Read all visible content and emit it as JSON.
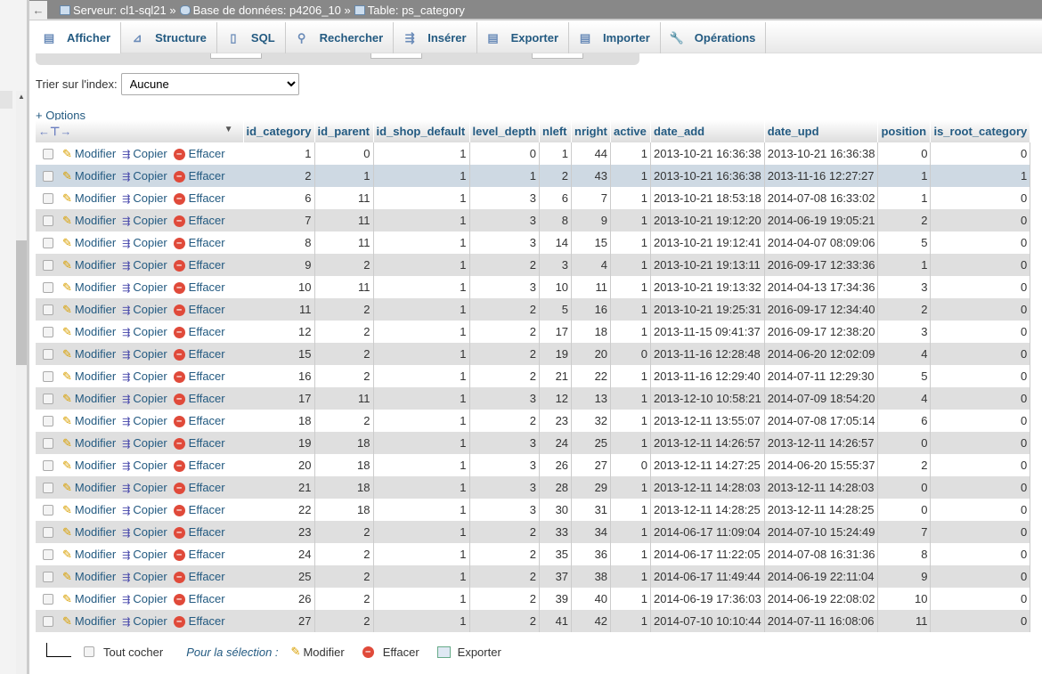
{
  "breadcrumb": {
    "server": "Serveur: cl1-sql21",
    "database": "Base de données: p4206_10",
    "table": "Table: ps_category",
    "separator": "»",
    "back": "←"
  },
  "tabs": [
    {
      "label": "Afficher",
      "icon": "table-icon"
    },
    {
      "label": "Structure",
      "icon": "structure-icon"
    },
    {
      "label": "SQL",
      "icon": "sql-icon"
    },
    {
      "label": "Rechercher",
      "icon": "search-icon"
    },
    {
      "label": "Insérer",
      "icon": "insert-icon"
    },
    {
      "label": "Exporter",
      "icon": "export-icon"
    },
    {
      "label": "Importer",
      "icon": "import-icon"
    },
    {
      "label": "Opérations",
      "icon": "wrench-icon"
    }
  ],
  "sort": {
    "label": "Trier sur l'index:",
    "value": "Aucune"
  },
  "options_link": "+ Options",
  "table": {
    "columns": [
      "id_category",
      "id_parent",
      "id_shop_default",
      "level_depth",
      "nleft",
      "nright",
      "active",
      "date_add",
      "date_upd",
      "position",
      "is_root_category"
    ],
    "actions": {
      "edit": "Modifier",
      "copy": "Copier",
      "delete": "Effacer"
    },
    "selected_row": 1,
    "rows": [
      [
        "1",
        "0",
        "1",
        "0",
        "1",
        "44",
        "1",
        "2013-10-21 16:36:38",
        "2013-10-21 16:36:38",
        "0",
        "0"
      ],
      [
        "2",
        "1",
        "1",
        "1",
        "2",
        "43",
        "1",
        "2013-10-21 16:36:38",
        "2013-11-16 12:27:27",
        "1",
        "1"
      ],
      [
        "6",
        "11",
        "1",
        "3",
        "6",
        "7",
        "1",
        "2013-10-21 18:53:18",
        "2014-07-08 16:33:02",
        "1",
        "0"
      ],
      [
        "7",
        "11",
        "1",
        "3",
        "8",
        "9",
        "1",
        "2013-10-21 19:12:20",
        "2014-06-19 19:05:21",
        "2",
        "0"
      ],
      [
        "8",
        "11",
        "1",
        "3",
        "14",
        "15",
        "1",
        "2013-10-21 19:12:41",
        "2014-04-07 08:09:06",
        "5",
        "0"
      ],
      [
        "9",
        "2",
        "1",
        "2",
        "3",
        "4",
        "1",
        "2013-10-21 19:13:11",
        "2016-09-17 12:33:36",
        "1",
        "0"
      ],
      [
        "10",
        "11",
        "1",
        "3",
        "10",
        "11",
        "1",
        "2013-10-21 19:13:32",
        "2014-04-13 17:34:36",
        "3",
        "0"
      ],
      [
        "11",
        "2",
        "1",
        "2",
        "5",
        "16",
        "1",
        "2013-10-21 19:25:31",
        "2016-09-17 12:34:40",
        "2",
        "0"
      ],
      [
        "12",
        "2",
        "1",
        "2",
        "17",
        "18",
        "1",
        "2013-11-15 09:41:37",
        "2016-09-17 12:38:20",
        "3",
        "0"
      ],
      [
        "15",
        "2",
        "1",
        "2",
        "19",
        "20",
        "0",
        "2013-11-16 12:28:48",
        "2014-06-20 12:02:09",
        "4",
        "0"
      ],
      [
        "16",
        "2",
        "1",
        "2",
        "21",
        "22",
        "1",
        "2013-11-16 12:29:40",
        "2014-07-11 12:29:30",
        "5",
        "0"
      ],
      [
        "17",
        "11",
        "1",
        "3",
        "12",
        "13",
        "1",
        "2013-12-10 10:58:21",
        "2014-07-09 18:54:20",
        "4",
        "0"
      ],
      [
        "18",
        "2",
        "1",
        "2",
        "23",
        "32",
        "1",
        "2013-12-11 13:55:07",
        "2014-07-08 17:05:14",
        "6",
        "0"
      ],
      [
        "19",
        "18",
        "1",
        "3",
        "24",
        "25",
        "1",
        "2013-12-11 14:26:57",
        "2013-12-11 14:26:57",
        "0",
        "0"
      ],
      [
        "20",
        "18",
        "1",
        "3",
        "26",
        "27",
        "0",
        "2013-12-11 14:27:25",
        "2014-06-20 15:55:37",
        "2",
        "0"
      ],
      [
        "21",
        "18",
        "1",
        "3",
        "28",
        "29",
        "1",
        "2013-12-11 14:28:03",
        "2013-12-11 14:28:03",
        "0",
        "0"
      ],
      [
        "22",
        "18",
        "1",
        "3",
        "30",
        "31",
        "1",
        "2013-12-11 14:28:25",
        "2013-12-11 14:28:25",
        "0",
        "0"
      ],
      [
        "23",
        "2",
        "1",
        "2",
        "33",
        "34",
        "1",
        "2014-06-17 11:09:04",
        "2014-07-10 15:24:49",
        "7",
        "0"
      ],
      [
        "24",
        "2",
        "1",
        "2",
        "35",
        "36",
        "1",
        "2014-06-17 11:22:05",
        "2014-07-08 16:31:36",
        "8",
        "0"
      ],
      [
        "25",
        "2",
        "1",
        "2",
        "37",
        "38",
        "1",
        "2014-06-17 11:49:44",
        "2014-06-19 22:11:04",
        "9",
        "0"
      ],
      [
        "26",
        "2",
        "1",
        "2",
        "39",
        "40",
        "1",
        "2014-06-19 17:36:03",
        "2014-06-19 22:08:02",
        "10",
        "0"
      ],
      [
        "27",
        "2",
        "1",
        "2",
        "41",
        "42",
        "1",
        "2014-07-10 10:10:44",
        "2014-07-11 16:08:06",
        "11",
        "0"
      ]
    ]
  },
  "footer": {
    "check_all": "Tout cocher",
    "with_selected": "Pour la sélection :",
    "edit": "Modifier",
    "delete": "Effacer",
    "export": "Exporter"
  }
}
